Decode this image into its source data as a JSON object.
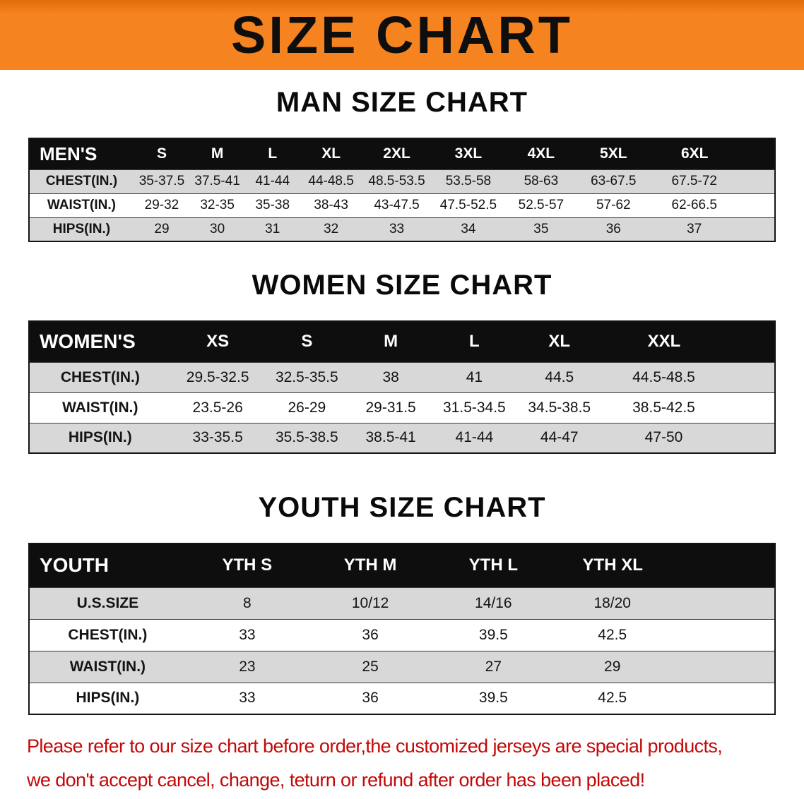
{
  "banner": {
    "title": "SIZE CHART",
    "bg_color": "#f5831f",
    "text_color": "#0e0e0e"
  },
  "chart_data": [
    {
      "type": "table",
      "title": "MAN SIZE CHART",
      "corner_label": "MEN'S",
      "columns": [
        "S",
        "M",
        "L",
        "XL",
        "2XL",
        "3XL",
        "4XL",
        "5XL",
        "6XL"
      ],
      "rows": [
        {
          "label": "CHEST(IN.)",
          "values": [
            "35-37.5",
            "37.5-41",
            "41-44",
            "44-48.5",
            "48.5-53.5",
            "53.5-58",
            "58-63",
            "63-67.5",
            "67.5-72"
          ]
        },
        {
          "label": "WAIST(IN.)",
          "values": [
            "29-32",
            "32-35",
            "35-38",
            "38-43",
            "43-47.5",
            "47.5-52.5",
            "52.5-57",
            "57-62",
            "62-66.5"
          ]
        },
        {
          "label": "HIPS(IN.)",
          "values": [
            "29",
            "30",
            "31",
            "32",
            "33",
            "34",
            "35",
            "36",
            "37"
          ]
        }
      ]
    },
    {
      "type": "table",
      "title": "WOMEN SIZE CHART",
      "corner_label": "WOMEN'S",
      "columns": [
        "XS",
        "S",
        "M",
        "L",
        "XL",
        "XXL"
      ],
      "rows": [
        {
          "label": "CHEST(IN.)",
          "values": [
            "29.5-32.5",
            "32.5-35.5",
            "38",
            "41",
            "44.5",
            "44.5-48.5"
          ]
        },
        {
          "label": "WAIST(IN.)",
          "values": [
            "23.5-26",
            "26-29",
            "29-31.5",
            "31.5-34.5",
            "34.5-38.5",
            "38.5-42.5"
          ]
        },
        {
          "label": "HIPS(IN.)",
          "values": [
            "33-35.5",
            "35.5-38.5",
            "38.5-41",
            "41-44",
            "44-47",
            "47-50"
          ]
        }
      ]
    },
    {
      "type": "table",
      "title": "YOUTH SIZE CHART",
      "corner_label": "YOUTH",
      "columns": [
        "YTH S",
        "YTH M",
        "YTH L",
        "YTH XL"
      ],
      "rows": [
        {
          "label": "U.S.SIZE",
          "values": [
            "8",
            "10/12",
            "14/16",
            "18/20"
          ]
        },
        {
          "label": "CHEST(IN.)",
          "values": [
            "33",
            "36",
            "39.5",
            "42.5"
          ]
        },
        {
          "label": "WAIST(IN.)",
          "values": [
            "23",
            "25",
            "27",
            "29"
          ]
        },
        {
          "label": "HIPS(IN.)",
          "values": [
            "33",
            "36",
            "39.5",
            "42.5"
          ]
        }
      ]
    }
  ],
  "footer": {
    "line1": "Please refer to our size chart before order,the customized jerseys are special products,",
    "line2": "we don't accept cancel, change, teturn or refund after order has been placed!",
    "text_color": "#c40808"
  }
}
